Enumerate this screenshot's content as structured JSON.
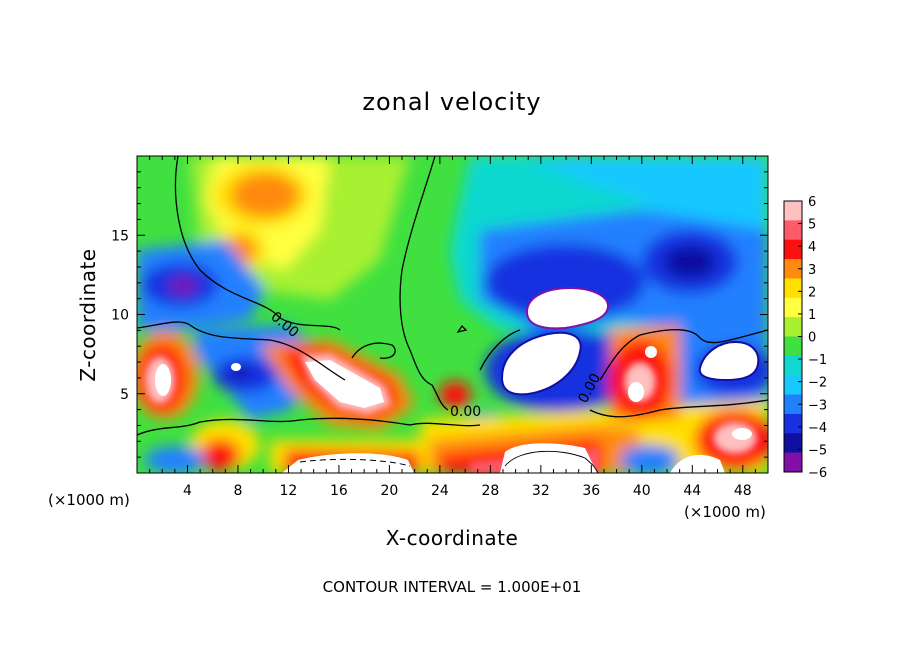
{
  "chart_data": {
    "type": "heatmap",
    "title": "zonal velocity",
    "xlabel": "X-coordinate",
    "ylabel": "Z-coordinate",
    "x_units_left": "(×1000 m)",
    "x_units_right": "(×1000 m)",
    "xlim": [
      0,
      50
    ],
    "ylim": [
      0,
      20
    ],
    "x_ticks": [
      4,
      8,
      12,
      16,
      20,
      24,
      28,
      32,
      36,
      40,
      44,
      48
    ],
    "y_ticks": [
      5,
      10,
      15
    ],
    "colorbar": {
      "ticks": [
        6,
        5,
        4,
        3,
        2,
        1,
        0,
        -1,
        -2,
        -3,
        -4,
        -5,
        -6
      ],
      "tick_labels": [
        "6",
        "5",
        "4",
        "3",
        "2",
        "1",
        "0",
        "−1",
        "−2",
        "−3",
        "−4",
        "−5",
        "−6"
      ],
      "colors": [
        "#ffc0c0",
        "#ff5a6a",
        "#ff1010",
        "#ff8a10",
        "#ffe000",
        "#ffff40",
        "#a8f030",
        "#40e040",
        "#10d8d0",
        "#18c8ff",
        "#2080ff",
        "#1830e0",
        "#1010a0",
        "#8010a8"
      ]
    },
    "contour_labels": [
      "0.00",
      "0.00",
      "0.00"
    ],
    "footer": "CONTOUR INTERVAL = 1.000E+01"
  }
}
